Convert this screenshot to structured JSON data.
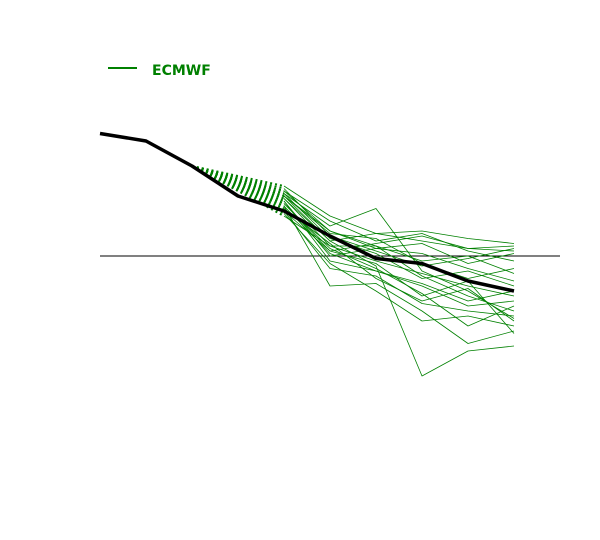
{
  "chart_data": {
    "type": "line",
    "x": [
      0,
      1,
      2,
      3,
      4,
      5,
      6,
      7,
      8,
      9
    ],
    "xlim": [
      0,
      10
    ],
    "ylim": [
      -6,
      6
    ],
    "reference_line": 0,
    "legend": "upper left",
    "reference": {
      "color": "#000000",
      "values": [
        4.9,
        4.6,
        3.6,
        2.4,
        1.8,
        0.8,
        -0.1,
        -0.3,
        -1.0,
        -1.4
      ]
    },
    "lead_in": {
      "from": 2,
      "to": 4,
      "style": "dotted"
    },
    "series": [
      {
        "name": "ECMWF",
        "color": "#008000",
        "members": [
          [
            null,
            null,
            null,
            null,
            2.8,
            1.6,
            0.9,
            0.6,
            0.3,
            0.2
          ],
          [
            null,
            null,
            null,
            null,
            2.6,
            1.0,
            0.4,
            -0.8,
            -1.6,
            -2.2
          ],
          [
            null,
            null,
            null,
            null,
            2.4,
            0.6,
            -0.4,
            -4.8,
            -3.8,
            -3.6
          ],
          [
            null,
            null,
            null,
            null,
            2.2,
            -0.2,
            -0.6,
            -1.2,
            -2.0,
            -1.8
          ],
          [
            null,
            null,
            null,
            null,
            2.0,
            -1.2,
            -1.1,
            -2.2,
            -3.5,
            -3.0
          ],
          [
            null,
            null,
            null,
            null,
            1.8,
            0.2,
            0.5,
            0.8,
            0.3,
            0.4
          ],
          [
            null,
            null,
            null,
            null,
            1.6,
            0.4,
            -0.2,
            -0.7,
            -1.2,
            -1.6
          ],
          [
            null,
            null,
            null,
            null,
            2.5,
            1.2,
            1.9,
            -0.6,
            -1.4,
            -2.5
          ],
          [
            null,
            null,
            null,
            null,
            2.3,
            0.6,
            0.9,
            1.0,
            0.7,
            0.5
          ],
          [
            null,
            null,
            null,
            null,
            2.1,
            0.3,
            -0.5,
            -1.5,
            -2.8,
            -2.0
          ],
          [
            null,
            null,
            null,
            null,
            2.7,
            0.8,
            0.2,
            -0.4,
            -0.1,
            0.3
          ],
          [
            null,
            null,
            null,
            null,
            1.9,
            0.5,
            -0.9,
            -1.8,
            -1.3,
            -2.6
          ],
          [
            null,
            null,
            null,
            null,
            2.4,
            0.9,
            0.7,
            -0.3,
            -0.9,
            -0.5
          ],
          [
            null,
            null,
            null,
            null,
            2.2,
            0.0,
            0.3,
            0.1,
            -0.5,
            -1.0
          ],
          [
            null,
            null,
            null,
            null,
            1.7,
            -0.3,
            -1.4,
            -2.6,
            -2.4,
            -2.8
          ],
          [
            null,
            null,
            null,
            null,
            2.6,
            1.4,
            0.6,
            0.9,
            0.2,
            -0.2
          ],
          [
            null,
            null,
            null,
            null,
            2.0,
            0.1,
            -0.6,
            -1.1,
            -1.8,
            -1.4
          ],
          [
            null,
            null,
            null,
            null,
            2.5,
            0.7,
            0.1,
            -0.9,
            -0.6,
            -1.2
          ],
          [
            null,
            null,
            null,
            null,
            1.8,
            -0.5,
            -0.8,
            -1.9,
            -2.2,
            -2.4
          ],
          [
            null,
            null,
            null,
            null,
            2.3,
            0.4,
            0.4,
            -0.2,
            0.0,
            -0.7
          ],
          [
            null,
            null,
            null,
            null,
            2.1,
            0.2,
            -0.3,
            -1.6,
            -1.0,
            -3.1
          ],
          [
            null,
            null,
            null,
            null,
            2.4,
            1.0,
            0.3,
            0.5,
            -0.3,
            0.1
          ]
        ]
      }
    ]
  }
}
